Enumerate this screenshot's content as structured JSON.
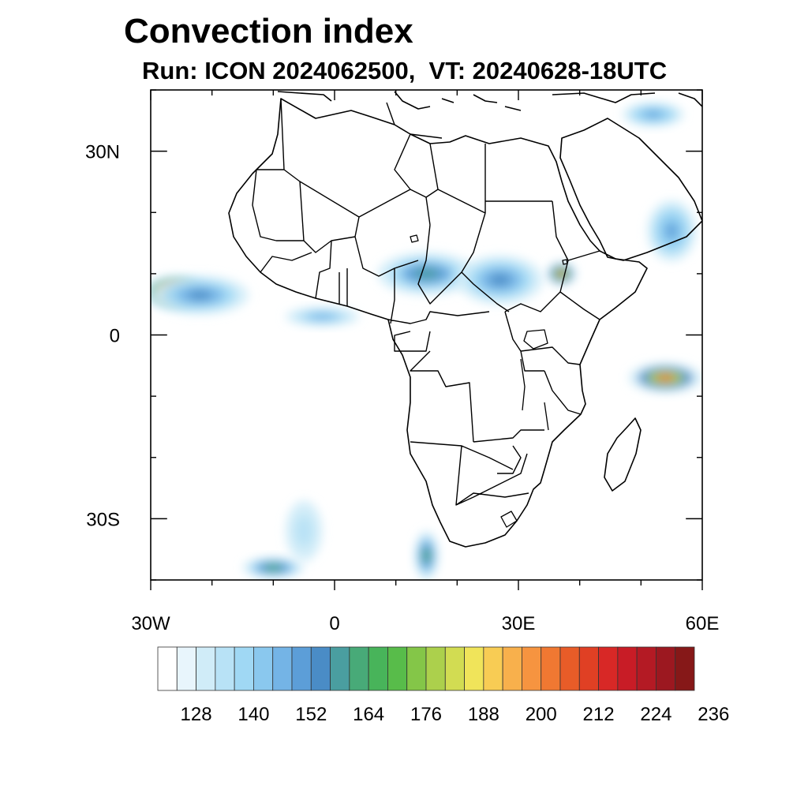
{
  "title": "Convection index",
  "subtitle": "Run: ICON 2024062500,  VT: 20240628-18UTC",
  "map": {
    "lon_range": [
      -30,
      60
    ],
    "lat_range": [
      -40,
      40
    ],
    "x_ticks": [
      {
        "lon": -30,
        "label": "30W"
      },
      {
        "lon": 0,
        "label": "0"
      },
      {
        "lon": 30,
        "label": "30E"
      },
      {
        "lon": 60,
        "label": "60E"
      }
    ],
    "y_ticks": [
      {
        "lat": 30,
        "label": "30N"
      },
      {
        "lat": 0,
        "label": "0"
      },
      {
        "lat": -30,
        "label": "30S"
      }
    ],
    "minor_lon_step": 10,
    "minor_lat_step": 10
  },
  "colorbar": {
    "colors": [
      "#ffffff",
      "#e8f5fc",
      "#d0ecf8",
      "#b8e2f6",
      "#a0d8f4",
      "#8ac8ee",
      "#74b4e6",
      "#5c9ed8",
      "#4a8cc6",
      "#4a9ea0",
      "#48aa78",
      "#48b45a",
      "#58bc4a",
      "#84c648",
      "#acd04c",
      "#d2dc52",
      "#f0e45a",
      "#f8cc54",
      "#f8b04c",
      "#f69440",
      "#f07832",
      "#e85c28",
      "#e04024",
      "#d82826",
      "#c81c26",
      "#b41a24",
      "#9c1820",
      "#861818"
    ],
    "labels": [
      {
        "index": 2,
        "text": "128"
      },
      {
        "index": 5,
        "text": "140"
      },
      {
        "index": 8,
        "text": "152"
      },
      {
        "index": 11,
        "text": "164"
      },
      {
        "index": 14,
        "text": "176"
      },
      {
        "index": 17,
        "text": "188"
      },
      {
        "index": 20,
        "text": "200"
      },
      {
        "index": 23,
        "text": "212"
      },
      {
        "index": 26,
        "text": "224"
      },
      {
        "index": 29,
        "text": "236"
      }
    ]
  },
  "convection_areas": [
    {
      "name": "atlantic-west-cluster",
      "lon": -26,
      "lat": 7,
      "rx": 5.5,
      "ry": 2.8,
      "level": 26
    },
    {
      "name": "atlantic-west-band",
      "lon": -22,
      "lat": 6.5,
      "rx": 8,
      "ry": 3.2,
      "level": 8
    },
    {
      "name": "guinea-coast",
      "lon": -2,
      "lat": 3,
      "rx": 6,
      "ry": 1.6,
      "level": 6
    },
    {
      "name": "sahel-central",
      "lon": 15,
      "lat": 10,
      "rx": 8,
      "ry": 3.5,
      "level": 9
    },
    {
      "name": "sahel-east",
      "lon": 27,
      "lat": 9,
      "rx": 7,
      "ry": 4,
      "level": 8
    },
    {
      "name": "ethiopia-highlands",
      "lon": 37,
      "lat": 10,
      "rx": 2.5,
      "ry": 2,
      "level": 19
    },
    {
      "name": "arabian-sea-band",
      "lon": 55,
      "lat": 17,
      "rx": 4,
      "ry": 5,
      "level": 7
    },
    {
      "name": "indian-ocean-cyclone",
      "lon": 54,
      "lat": -7,
      "rx": 6,
      "ry": 2.5,
      "level": 20
    },
    {
      "name": "south-atlantic-front",
      "lon": -5,
      "lat": -32,
      "rx": 3,
      "ry": 5,
      "level": 3
    },
    {
      "name": "southern-front-west",
      "lon": -10,
      "lat": -38,
      "rx": 5,
      "ry": 1.8,
      "level": 11
    },
    {
      "name": "southern-front-east",
      "lon": 15,
      "lat": -36,
      "rx": 2,
      "ry": 4,
      "level": 11
    },
    {
      "name": "mediterranean-east",
      "lon": 52,
      "lat": 36,
      "rx": 5,
      "ry": 2,
      "level": 7
    }
  ]
}
